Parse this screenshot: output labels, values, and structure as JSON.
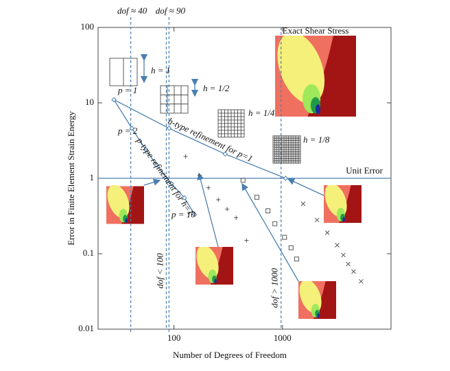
{
  "chart_data": {
    "type": "scatter",
    "xlabel": "Number of Degrees of Freedom",
    "ylabel": "Error in Finite Element Strain Energy",
    "xscale": "log",
    "yscale": "log",
    "xlim": [
      20,
      10000
    ],
    "ylim": [
      0.01,
      100
    ],
    "xticks": [
      100,
      1000
    ],
    "yticks": [
      0.01,
      0.1,
      1,
      10,
      100
    ],
    "series": [
      {
        "marker": "diamond",
        "line": true,
        "color": "#4a7fb0",
        "x": [
          28,
          41,
          55,
          69,
          95,
          125,
          155
        ],
        "y": [
          11,
          4.6,
          2.4,
          1.5,
          0.85,
          0.55,
          0.33
        ]
      },
      {
        "marker": "diamond",
        "line": true,
        "color": "#4a7fb0",
        "x": [
          28,
          90,
          296,
          1070
        ],
        "y": [
          11,
          4.6,
          2.1,
          1
        ]
      },
      {
        "marker": "plus",
        "line": false,
        "color": "#555",
        "x": [
          128,
          172,
          208,
          256,
          309,
          374,
          466
        ],
        "y": [
          1.95,
          1.1,
          0.75,
          0.52,
          0.39,
          0.3,
          0.15
        ]
      },
      {
        "marker": "square",
        "line": false,
        "color": "#555",
        "x": [
          433,
          581,
          735,
          851,
          1045,
          1200,
          1350
        ],
        "y": [
          0.94,
          0.56,
          0.37,
          0.25,
          0.165,
          0.12,
          0.085
        ]
      },
      {
        "marker": "cross",
        "line": false,
        "color": "#555",
        "x": [
          1550,
          2080,
          2590,
          3190,
          3640,
          4030,
          4520,
          5300
        ],
        "y": [
          0.46,
          0.28,
          0.19,
          0.13,
          0.096,
          0.073,
          0.058,
          0.043
        ]
      }
    ],
    "hline": {
      "value": 1,
      "label": "Unit Error"
    },
    "vlines": [
      {
        "value": 40,
        "label": "dof ≈ 40",
        "top": true
      },
      {
        "value": 90,
        "label": "dof ≈ 90",
        "top": true
      },
      {
        "value": 85,
        "label": "dof < 100",
        "top": false
      },
      {
        "value": 970,
        "label": "dof > 1000",
        "top": false
      }
    ],
    "annotations": [
      "Exact Shear Stress",
      "h = 1",
      "h = 1/2",
      "h = 1/4",
      "h = 1/8",
      "p = 1",
      "p = 2",
      "p = 10",
      "h-type refinement for p=1",
      "p-type refinement for h=1"
    ]
  }
}
